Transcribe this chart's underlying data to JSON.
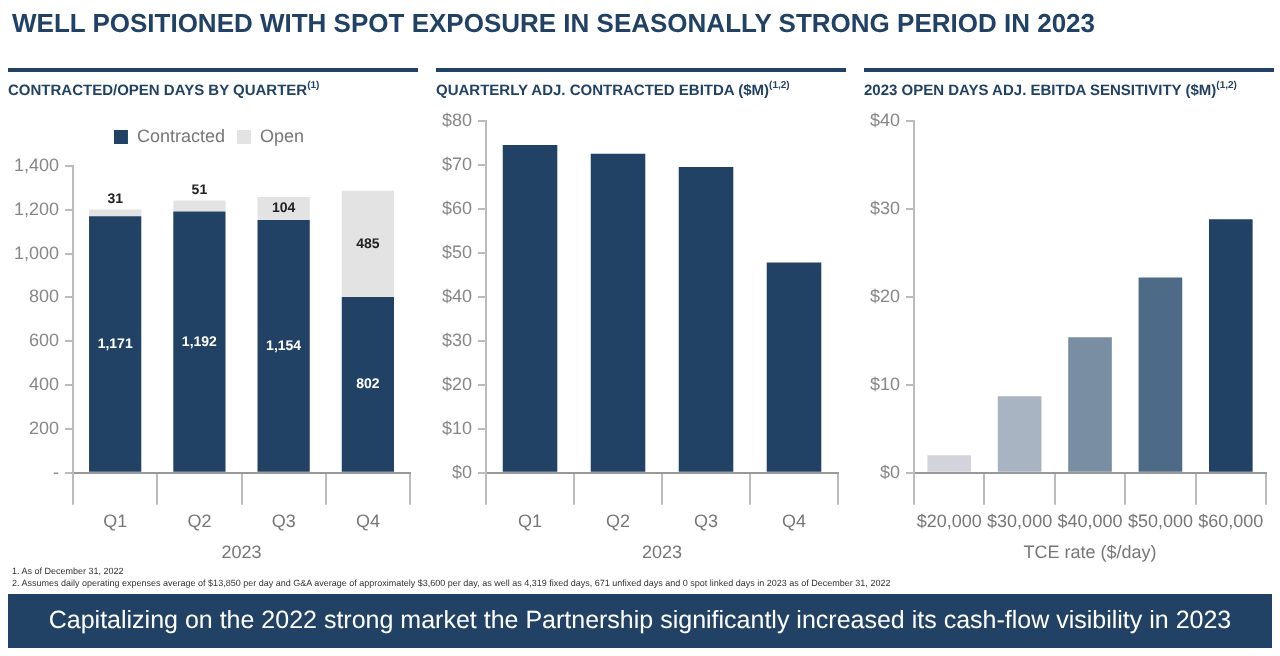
{
  "chart_data": [
    {
      "type": "bar",
      "title": "CONTRACTED/OPEN DAYS BY QUARTER$^{(1)}$",
      "xlabel": "2023",
      "categories": [
        "Q1",
        "Q2",
        "Q3",
        "Q4"
      ],
      "stacked": true,
      "legend": "top",
      "series": [
        {
          "name": "Contracted",
          "color": "#214265",
          "values": [
            1171,
            1192,
            1154,
            802
          ],
          "value_labels": [
            "1,171",
            "1,192",
            "1,154",
            "802"
          ]
        },
        {
          "name": "Open",
          "color": "#e3e3e3",
          "values": [
            31,
            51,
            104,
            485
          ],
          "value_labels": [
            "31",
            "51",
            "104",
            "485"
          ]
        }
      ],
      "ylim": [
        0,
        1400
      ],
      "yticks": [
        {
          "value": 0,
          "label": "-"
        },
        {
          "value": 200,
          "label": "200"
        },
        {
          "value": 400,
          "label": "400"
        },
        {
          "value": 600,
          "label": "600"
        },
        {
          "value": 800,
          "label": "800"
        },
        {
          "value": 1000,
          "label": "1,000"
        },
        {
          "value": 1200,
          "label": "1,200"
        },
        {
          "value": 1400,
          "label": "1,400"
        }
      ],
      "annotations": [
        "WELL POSITIONED WITH SPOT EXPOSURE IN SEASONALLY STRONG PERIOD IN 2023",
        "1.     As of December 31, 2022",
        "2.     Assumes daily operating expenses average of $13,850 per day and G&A average of approximately $3,600  per day, as well as 4,319 fixed days, 671 unfixed days and 0 spot linked days in 2023 as of December 31, 2022"
      ]
    },
    {
      "type": "bar",
      "title": "QUARTERLY ADJ. CONTRACTED EBITDA ($M)$^{(1,2)}$",
      "xlabel": "2023",
      "categories": [
        "Q1",
        "Q2",
        "Q3",
        "Q4"
      ],
      "color": "#214265",
      "values": [
        74.5,
        72.5,
        69.5,
        47.8
      ],
      "ylim": [
        0,
        80
      ],
      "yticks": [
        {
          "value": 0,
          "label": "$0"
        },
        {
          "value": 10,
          "label": "$10"
        },
        {
          "value": 20,
          "label": "$20"
        },
        {
          "value": 30,
          "label": "$30"
        },
        {
          "value": 40,
          "label": "$40"
        },
        {
          "value": 50,
          "label": "$50"
        },
        {
          "value": 60,
          "label": "$60"
        },
        {
          "value": 70,
          "label": "$70"
        },
        {
          "value": 80,
          "label": "$80"
        }
      ]
    },
    {
      "type": "bar",
      "title": "2023 OPEN DAYS ADJ. EBITDA SENSITIVITY ($M)$^{(1,2)}$",
      "xlabel": "TCE rate ($/day)",
      "categories": [
        "$20,000",
        "$30,000",
        "$40,000",
        "$50,000",
        "$60,000"
      ],
      "values": [
        2,
        8.7,
        15.4,
        22.2,
        28.8
      ],
      "colors": [
        "#d3d3dc",
        "#a8b4c2",
        "#7a8ea3",
        "#4d6a86",
        "#214265"
      ],
      "ylim": [
        0,
        40
      ],
      "yticks": [
        {
          "value": 0,
          "label": "$0"
        },
        {
          "value": 10,
          "label": "$10"
        },
        {
          "value": 20,
          "label": "$20"
        },
        {
          "value": 30,
          "label": "$30"
        },
        {
          "value": 40,
          "label": "$40"
        }
      ],
      "annotations": [
        "Capitalizing on the 2022 strong market the Partnership significantly increased its cash-flow visibility in 2023"
      ]
    }
  ]
}
